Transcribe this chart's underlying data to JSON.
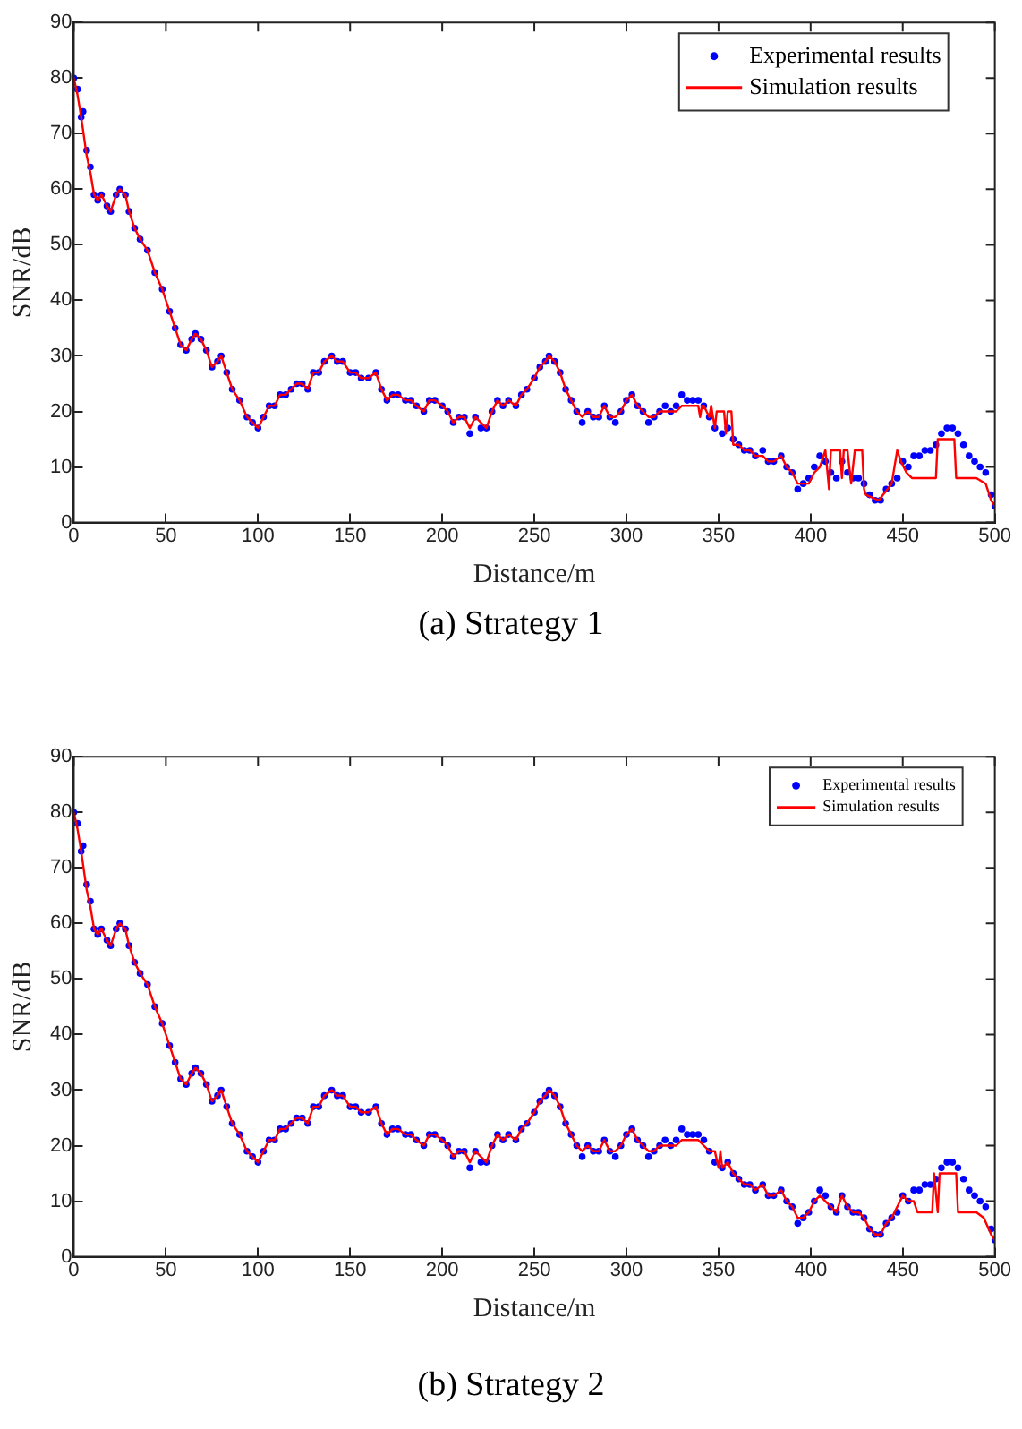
{
  "chart_data": [
    {
      "type": "line",
      "xlabel": "Distance/m",
      "ylabel": "SNR/dB",
      "annotations": [
        "(a) Strategy 1"
      ],
      "xlim": [
        0,
        500
      ],
      "xticks": [
        0,
        50,
        100,
        150,
        200,
        250,
        300,
        350,
        400,
        450,
        500
      ],
      "ylim": [
        0,
        90
      ],
      "yticks": [
        0,
        10,
        20,
        30,
        40,
        50,
        60,
        70,
        80,
        90
      ],
      "grid": false,
      "legend": "top right",
      "series": [
        {
          "name": "Experimental results",
          "type": "scatter",
          "marker": "circle",
          "color": "#0000ff",
          "x": [
            0,
            2,
            4,
            5,
            7,
            9,
            11,
            13,
            15,
            18,
            20,
            23,
            25,
            28,
            30,
            33,
            36,
            40,
            44,
            48,
            52,
            55,
            58,
            61,
            64,
            66,
            69,
            72,
            75,
            78,
            80,
            83,
            86,
            90,
            94,
            97,
            100,
            103,
            106,
            109,
            112,
            115,
            118,
            121,
            124,
            127,
            130,
            133,
            136,
            140,
            143,
            146,
            150,
            153,
            156,
            160,
            164,
            167,
            170,
            173,
            176,
            180,
            183,
            186,
            190,
            193,
            196,
            200,
            203,
            206,
            209,
            212,
            215,
            218,
            221,
            224,
            227,
            230,
            233,
            236,
            240,
            243,
            246,
            250,
            253,
            256,
            258,
            261,
            264,
            267,
            270,
            273,
            276,
            279,
            282,
            285,
            288,
            291,
            294,
            297,
            300,
            303,
            306,
            309,
            312,
            315,
            318,
            321,
            324,
            327,
            330,
            333,
            336,
            339,
            342,
            345,
            348,
            352,
            355,
            358,
            361,
            364,
            367,
            370,
            374,
            377,
            380,
            384,
            387,
            390,
            393,
            396,
            399,
            402,
            405,
            408,
            411,
            414,
            417,
            420,
            423,
            426,
            429,
            432,
            435,
            438,
            441,
            444,
            447,
            450,
            453,
            456,
            459,
            462,
            465,
            468,
            471,
            474,
            477,
            480,
            483,
            486,
            489,
            492,
            495,
            498,
            500
          ],
          "values": [
            80,
            78,
            73,
            74,
            67,
            64,
            59,
            58,
            59,
            57,
            56,
            59,
            60,
            59,
            56,
            53,
            51,
            49,
            45,
            42,
            38,
            35,
            32,
            31,
            33,
            34,
            33,
            31,
            28,
            29,
            30,
            27,
            24,
            22,
            19,
            18,
            17,
            19,
            21,
            21,
            23,
            23,
            24,
            25,
            25,
            24,
            27,
            27,
            29,
            30,
            29,
            29,
            27,
            27,
            26,
            26,
            27,
            24,
            22,
            23,
            23,
            22,
            22,
            21,
            20,
            22,
            22,
            21,
            20,
            18,
            19,
            19,
            16,
            19,
            17,
            17,
            20,
            22,
            21,
            22,
            21,
            23,
            24,
            26,
            28,
            29,
            30,
            29,
            27,
            24,
            22,
            20,
            18,
            20,
            19,
            19,
            21,
            19,
            18,
            20,
            22,
            23,
            21,
            20,
            18,
            19,
            20,
            21,
            20,
            21,
            23,
            22,
            22,
            22,
            21,
            19,
            17,
            16,
            17,
            15,
            14,
            13,
            13,
            12,
            13,
            11,
            11,
            12,
            10,
            9,
            6,
            7,
            8,
            10,
            12,
            11,
            9,
            8,
            11,
            9,
            8,
            8,
            7,
            5,
            4,
            4,
            6,
            7,
            8,
            11,
            10,
            12,
            12,
            13,
            13,
            14,
            16,
            17,
            17,
            16,
            14,
            12,
            11,
            10,
            9,
            5,
            3
          ]
        },
        {
          "name": "Simulation results",
          "type": "line",
          "line_style": "solid",
          "color": "#ff0000",
          "x": [
            0,
            2,
            4,
            7,
            9,
            11,
            13,
            15,
            18,
            20,
            23,
            25,
            28,
            30,
            33,
            36,
            40,
            44,
            48,
            52,
            55,
            58,
            61,
            64,
            66,
            69,
            72,
            75,
            78,
            80,
            83,
            86,
            90,
            94,
            97,
            100,
            103,
            106,
            109,
            112,
            115,
            118,
            121,
            124,
            127,
            130,
            133,
            136,
            140,
            143,
            146,
            150,
            153,
            156,
            160,
            164,
            167,
            170,
            173,
            176,
            180,
            183,
            186,
            190,
            193,
            196,
            200,
            203,
            206,
            209,
            212,
            215,
            218,
            221,
            224,
            227,
            230,
            233,
            236,
            240,
            243,
            246,
            250,
            253,
            256,
            258,
            261,
            264,
            267,
            270,
            273,
            276,
            279,
            282,
            285,
            288,
            291,
            294,
            297,
            300,
            303,
            306,
            309,
            312,
            315,
            318,
            321,
            324,
            327,
            330,
            333,
            336,
            339,
            340,
            341,
            342,
            345,
            346,
            348,
            349,
            353,
            354,
            355,
            357,
            358,
            361,
            364,
            367,
            370,
            374,
            377,
            380,
            384,
            387,
            390,
            393,
            399,
            402,
            405,
            408,
            410,
            411,
            416,
            417,
            418,
            420,
            422,
            424,
            428,
            429,
            430,
            437,
            444,
            447,
            449,
            452,
            455,
            468,
            469,
            478,
            479,
            490,
            495,
            498,
            500
          ],
          "values": [
            80,
            77,
            73,
            66,
            63,
            59,
            58,
            59,
            57,
            56,
            59,
            60,
            59,
            56,
            53,
            51,
            49,
            45,
            42,
            38,
            35,
            32,
            31,
            33,
            34,
            33,
            31,
            28,
            29,
            30,
            27,
            24,
            22,
            19,
            18,
            17,
            19,
            21,
            21,
            23,
            23,
            24,
            25,
            25,
            24,
            27,
            27,
            29,
            30,
            29,
            29,
            27,
            27,
            26,
            26,
            27,
            24,
            22,
            23,
            23,
            22,
            22,
            21,
            20,
            22,
            22,
            21,
            20,
            18,
            19,
            19,
            17,
            19,
            18,
            17,
            20,
            22,
            21,
            22,
            21,
            23,
            24,
            26,
            28,
            29,
            30,
            29,
            27,
            24,
            22,
            20,
            19,
            20,
            19,
            19,
            21,
            19,
            19,
            20,
            22,
            23,
            21,
            20,
            19,
            19,
            20,
            20,
            20,
            20,
            21,
            21,
            21,
            21,
            19,
            21,
            21,
            19,
            21,
            17,
            20,
            20,
            16,
            20,
            20,
            14,
            14,
            13,
            13,
            12,
            12,
            11,
            11,
            12,
            10,
            9,
            7,
            7,
            9,
            10,
            13,
            6,
            13,
            13,
            8,
            13,
            13,
            7,
            13,
            13,
            6,
            5,
            4,
            7,
            13,
            11,
            9,
            8,
            8,
            15,
            15,
            8,
            8,
            7,
            4,
            3
          ]
        }
      ]
    },
    {
      "type": "line",
      "xlabel": "Distance/m",
      "ylabel": "SNR/dB",
      "annotations": [
        "(b) Strategy 2"
      ],
      "xlim": [
        0,
        500
      ],
      "xticks": [
        0,
        50,
        100,
        150,
        200,
        250,
        300,
        350,
        400,
        450,
        500
      ],
      "ylim": [
        0,
        90
      ],
      "yticks": [
        0,
        10,
        20,
        30,
        40,
        50,
        60,
        70,
        80,
        90
      ],
      "grid": false,
      "legend": "top right",
      "series": [
        {
          "name": "Experimental results",
          "type": "scatter",
          "marker": "circle",
          "color": "#0000ff",
          "x": [
            0,
            2,
            4,
            5,
            7,
            9,
            11,
            13,
            15,
            18,
            20,
            23,
            25,
            28,
            30,
            33,
            36,
            40,
            44,
            48,
            52,
            55,
            58,
            61,
            64,
            66,
            69,
            72,
            75,
            78,
            80,
            83,
            86,
            90,
            94,
            97,
            100,
            103,
            106,
            109,
            112,
            115,
            118,
            121,
            124,
            127,
            130,
            133,
            136,
            140,
            143,
            146,
            150,
            153,
            156,
            160,
            164,
            167,
            170,
            173,
            176,
            180,
            183,
            186,
            190,
            193,
            196,
            200,
            203,
            206,
            209,
            212,
            215,
            218,
            221,
            224,
            227,
            230,
            233,
            236,
            240,
            243,
            246,
            250,
            253,
            256,
            258,
            261,
            264,
            267,
            270,
            273,
            276,
            279,
            282,
            285,
            288,
            291,
            294,
            297,
            300,
            303,
            306,
            309,
            312,
            315,
            318,
            321,
            324,
            327,
            330,
            333,
            336,
            339,
            342,
            345,
            348,
            352,
            355,
            358,
            361,
            364,
            367,
            370,
            374,
            377,
            380,
            384,
            387,
            390,
            393,
            396,
            399,
            402,
            405,
            408,
            411,
            414,
            417,
            420,
            423,
            426,
            429,
            432,
            435,
            438,
            441,
            444,
            447,
            450,
            453,
            456,
            459,
            462,
            465,
            468,
            471,
            474,
            477,
            480,
            483,
            486,
            489,
            492,
            495,
            498,
            500
          ],
          "values": [
            80,
            78,
            73,
            74,
            67,
            64,
            59,
            58,
            59,
            57,
            56,
            59,
            60,
            59,
            56,
            53,
            51,
            49,
            45,
            42,
            38,
            35,
            32,
            31,
            33,
            34,
            33,
            31,
            28,
            29,
            30,
            27,
            24,
            22,
            19,
            18,
            17,
            19,
            21,
            21,
            23,
            23,
            24,
            25,
            25,
            24,
            27,
            27,
            29,
            30,
            29,
            29,
            27,
            27,
            26,
            26,
            27,
            24,
            22,
            23,
            23,
            22,
            22,
            21,
            20,
            22,
            22,
            21,
            20,
            18,
            19,
            19,
            16,
            19,
            17,
            17,
            20,
            22,
            21,
            22,
            21,
            23,
            24,
            26,
            28,
            29,
            30,
            29,
            27,
            24,
            22,
            20,
            18,
            20,
            19,
            19,
            21,
            19,
            18,
            20,
            22,
            23,
            21,
            20,
            18,
            19,
            20,
            21,
            20,
            21,
            23,
            22,
            22,
            22,
            21,
            19,
            17,
            16,
            17,
            15,
            14,
            13,
            13,
            12,
            13,
            11,
            11,
            12,
            10,
            9,
            6,
            7,
            8,
            10,
            12,
            11,
            9,
            8,
            11,
            9,
            8,
            8,
            7,
            5,
            4,
            4,
            6,
            7,
            8,
            11,
            10,
            12,
            12,
            13,
            13,
            14,
            16,
            17,
            17,
            16,
            14,
            12,
            11,
            10,
            9,
            5,
            3
          ]
        },
        {
          "name": "Simulation results",
          "type": "line",
          "line_style": "solid",
          "color": "#ff0000",
          "x": [
            0,
            2,
            4,
            7,
            9,
            11,
            13,
            15,
            18,
            20,
            23,
            25,
            28,
            30,
            33,
            36,
            40,
            44,
            48,
            52,
            55,
            58,
            61,
            64,
            66,
            69,
            72,
            75,
            78,
            80,
            83,
            86,
            90,
            94,
            97,
            100,
            103,
            106,
            109,
            112,
            115,
            118,
            121,
            124,
            127,
            130,
            133,
            136,
            140,
            143,
            146,
            150,
            153,
            156,
            160,
            164,
            167,
            170,
            173,
            176,
            180,
            183,
            186,
            190,
            193,
            196,
            200,
            203,
            206,
            209,
            212,
            215,
            218,
            221,
            224,
            227,
            230,
            233,
            236,
            240,
            243,
            246,
            250,
            253,
            256,
            258,
            261,
            264,
            267,
            270,
            273,
            276,
            279,
            282,
            285,
            288,
            291,
            294,
            297,
            300,
            303,
            306,
            309,
            312,
            315,
            318,
            321,
            324,
            327,
            330,
            333,
            336,
            339,
            342,
            345,
            348,
            350,
            351,
            352,
            355,
            358,
            361,
            364,
            367,
            370,
            374,
            377,
            380,
            384,
            387,
            390,
            393,
            396,
            399,
            402,
            405,
            408,
            411,
            414,
            417,
            420,
            423,
            426,
            429,
            432,
            435,
            438,
            441,
            444,
            447,
            450,
            453,
            456,
            458,
            466,
            467,
            469,
            470,
            479,
            480,
            490,
            494,
            498,
            500
          ],
          "values": [
            80,
            77,
            73,
            66,
            63,
            59,
            58,
            59,
            57,
            56,
            59,
            60,
            59,
            56,
            53,
            51,
            49,
            45,
            42,
            38,
            35,
            32,
            31,
            33,
            34,
            33,
            31,
            28,
            29,
            30,
            27,
            24,
            22,
            19,
            18,
            17,
            19,
            21,
            21,
            23,
            23,
            24,
            25,
            25,
            24,
            27,
            27,
            29,
            30,
            29,
            29,
            27,
            27,
            26,
            26,
            27,
            24,
            22,
            23,
            23,
            22,
            22,
            21,
            20,
            22,
            22,
            21,
            20,
            18,
            19,
            19,
            17,
            19,
            18,
            17,
            20,
            22,
            21,
            22,
            21,
            23,
            24,
            26,
            28,
            29,
            30,
            29,
            27,
            24,
            22,
            20,
            19,
            20,
            19,
            19,
            21,
            19,
            19,
            20,
            22,
            23,
            21,
            20,
            19,
            19,
            20,
            20,
            20,
            20,
            21,
            21,
            21,
            21,
            20,
            19,
            19,
            16,
            19,
            16,
            17,
            15,
            14,
            13,
            13,
            12,
            13,
            11,
            11,
            12,
            10,
            9,
            7,
            7,
            8,
            10,
            11,
            10,
            9,
            8,
            11,
            9,
            8,
            8,
            7,
            5,
            4,
            4,
            6,
            7,
            9,
            11,
            10,
            10,
            8,
            8,
            15,
            8,
            15,
            15,
            8,
            8,
            7,
            4,
            3
          ]
        }
      ]
    }
  ]
}
